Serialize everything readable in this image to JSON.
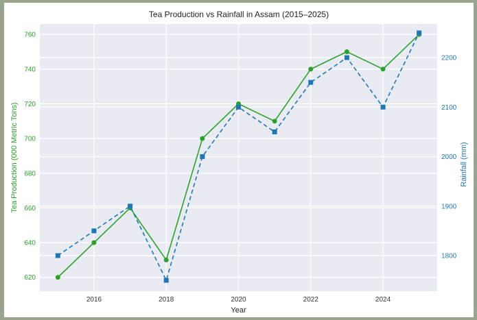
{
  "chart_data": {
    "type": "line",
    "title": "Tea Production vs Rainfall in Assam (2015–2025)",
    "xlabel": "Year",
    "x": [
      2015,
      2016,
      2017,
      2018,
      2019,
      2020,
      2021,
      2022,
      2023,
      2024,
      2025
    ],
    "xticks": [
      "2016",
      "2018",
      "2020",
      "2022",
      "2024"
    ],
    "xlim": [
      2014.5,
      2025.5
    ],
    "left_axis": {
      "label": "Tea Production (000 Metric Tons)",
      "color": "#2ca02c",
      "ylim": [
        612,
        766
      ],
      "ticks": [
        "620",
        "640",
        "660",
        "680",
        "700",
        "720",
        "740",
        "760"
      ]
    },
    "right_axis": {
      "label": "Rainfall (mm)",
      "color": "#1f77b4",
      "ylim": [
        1728,
        2268
      ],
      "ticks": [
        "1800",
        "1900",
        "2000",
        "2100",
        "2200"
      ]
    },
    "series": [
      {
        "axis": "left",
        "color": "#2ca02c",
        "line": "solid",
        "marker": "circle",
        "values": [
          620,
          640,
          660,
          630,
          700,
          720,
          710,
          740,
          750,
          740,
          760
        ]
      },
      {
        "axis": "right",
        "color": "#1f77b4",
        "line": "dashed",
        "marker": "square",
        "values": [
          1800,
          1850,
          1900,
          1750,
          2000,
          2100,
          2050,
          2150,
          2200,
          2100,
          2250
        ]
      }
    ],
    "grid": true
  }
}
